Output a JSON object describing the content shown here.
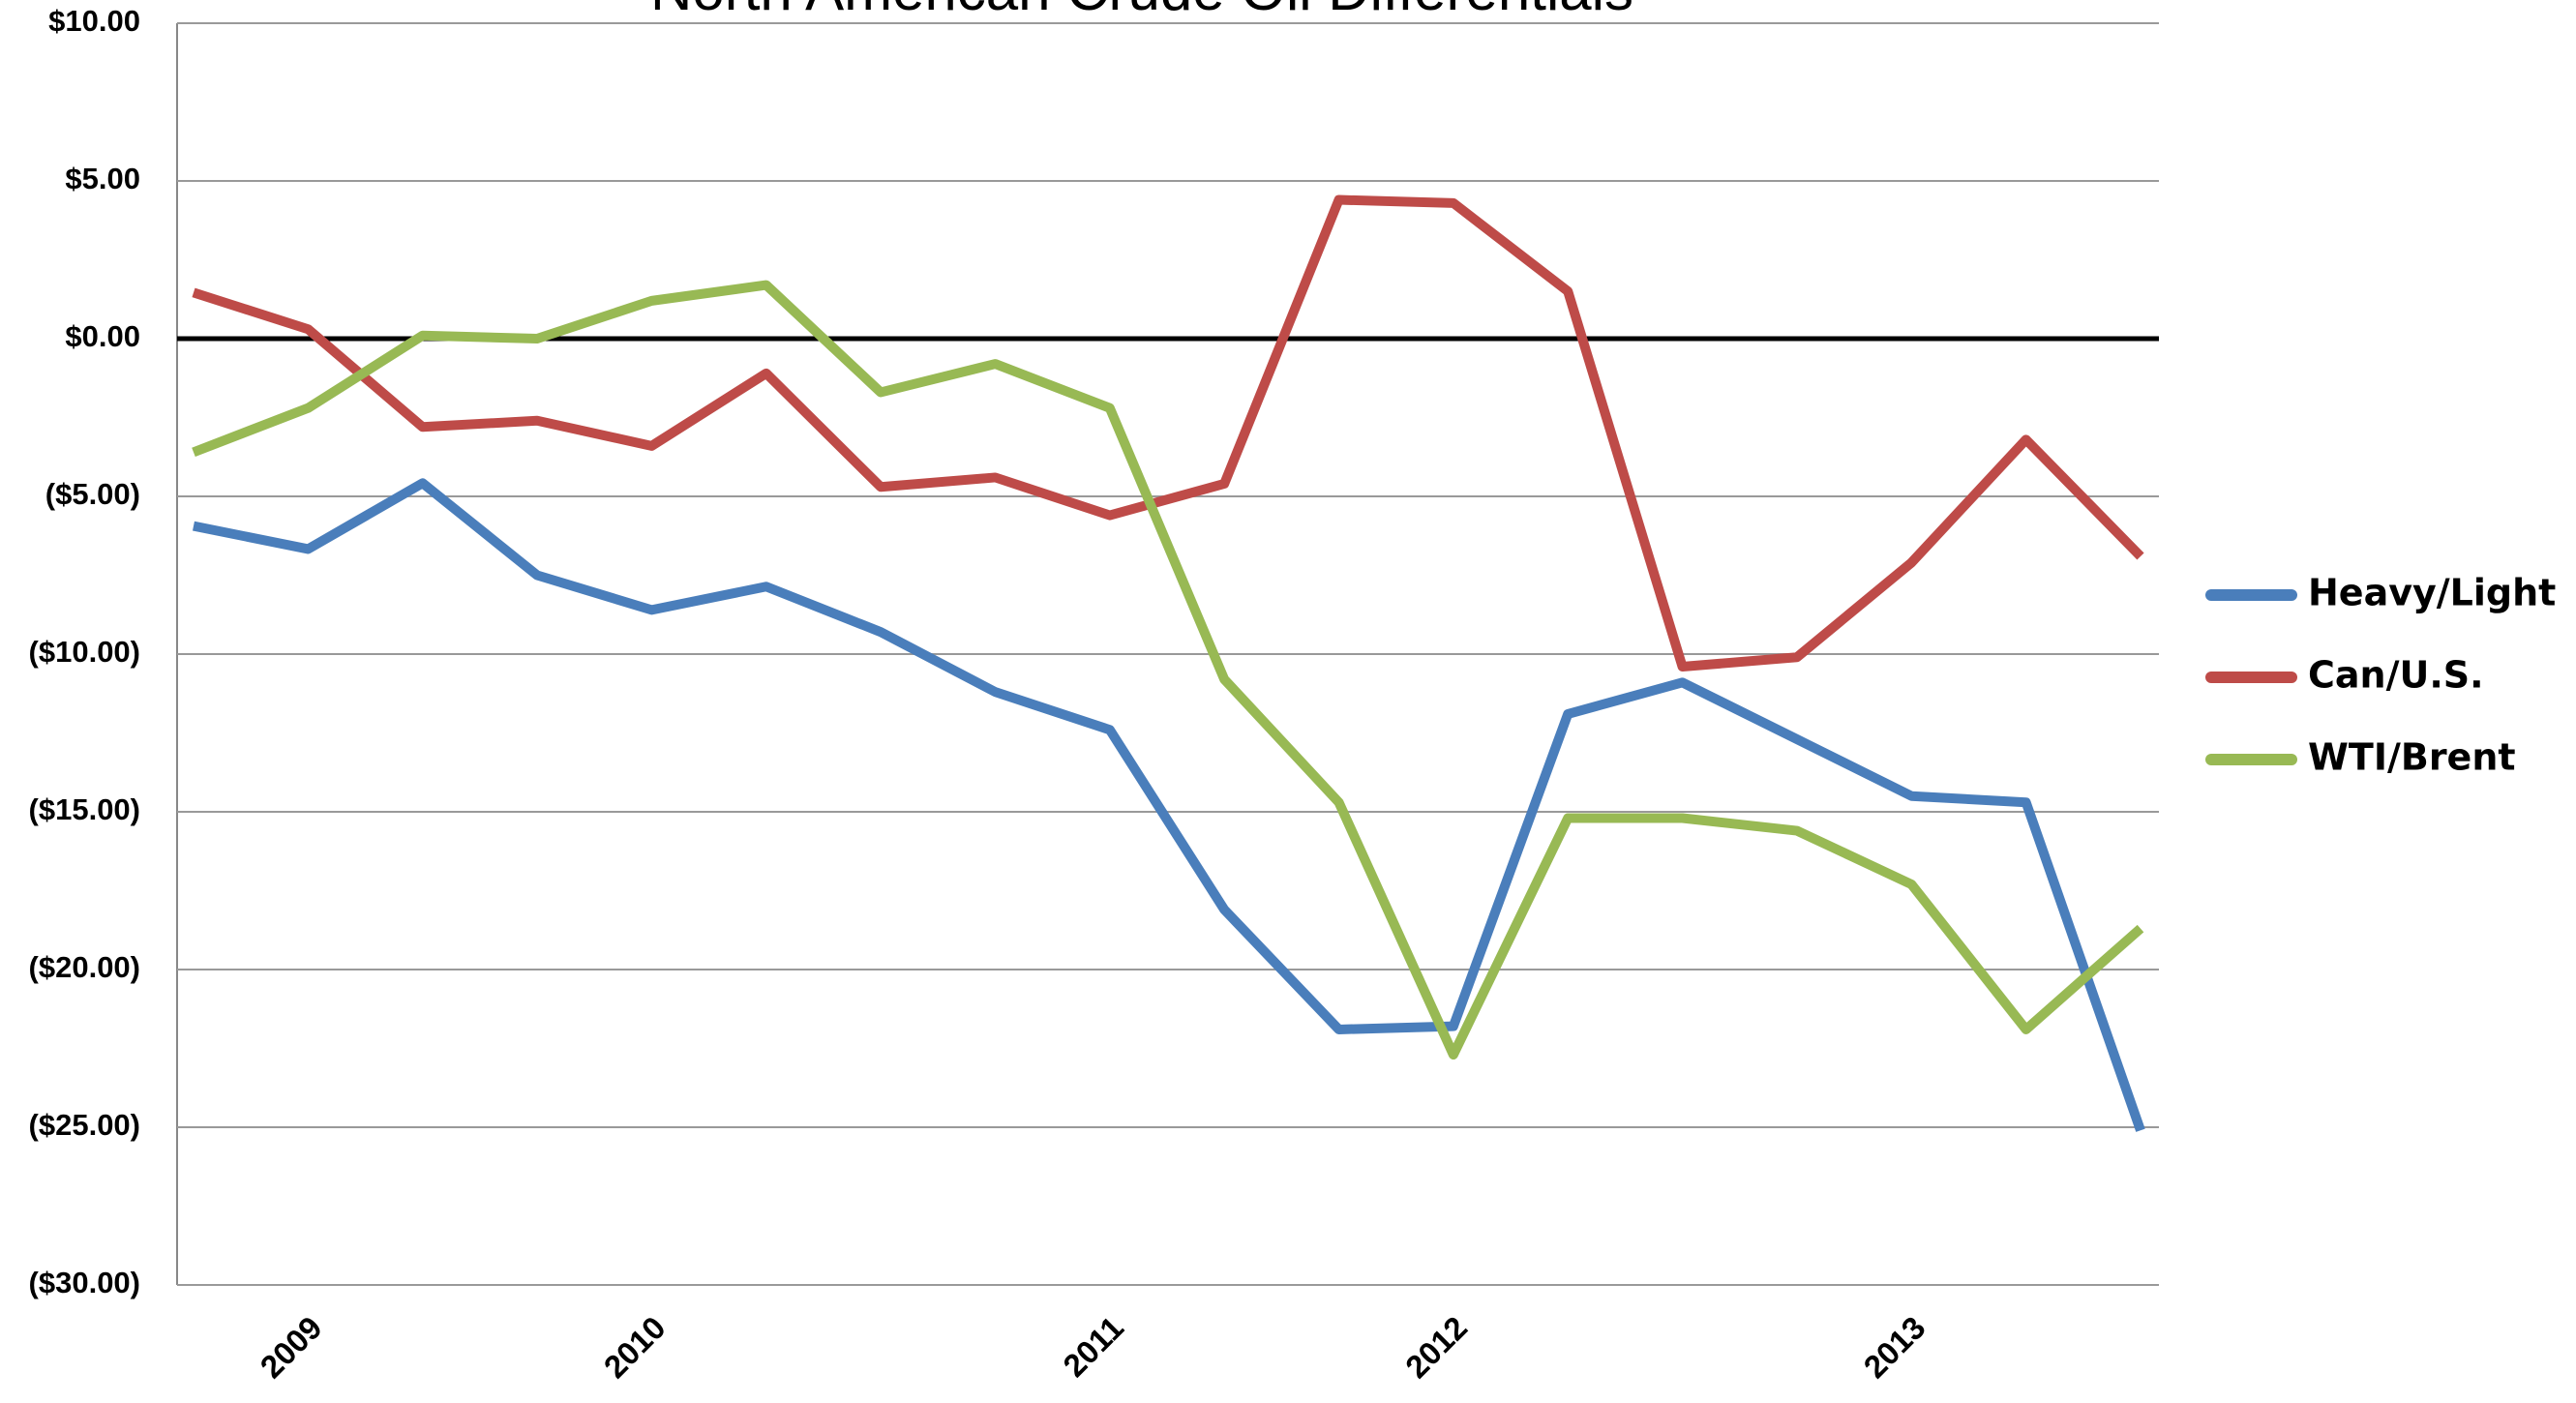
{
  "chart_data": {
    "type": "line",
    "title": "North American Crude Oil Differentials",
    "categories": [
      null,
      "2009",
      null,
      null,
      "2010",
      null,
      null,
      null,
      "2011",
      null,
      null,
      "2012",
      null,
      null,
      null,
      "2013",
      null,
      null
    ],
    "series": [
      {
        "name": "Heavy/Light",
        "color": "#4a7ebb",
        "values": [
          -5.94,
          -6.67,
          -4.58,
          -7.5,
          -8.6,
          -7.86,
          -9.3,
          -11.2,
          -12.4,
          -18.1,
          -21.9,
          -21.8,
          -11.9,
          -10.9,
          -12.7,
          -14.5,
          -14.7,
          -25.1
        ]
      },
      {
        "name": "Can/U.S.",
        "color": "#be4b48",
        "values": [
          1.46,
          0.3,
          -2.8,
          -2.6,
          -3.4,
          -1.1,
          -4.7,
          -4.4,
          -5.6,
          -4.6,
          4.4,
          4.3,
          1.5,
          -10.4,
          -10.1,
          -7.1,
          -3.2,
          -6.9
        ]
      },
      {
        "name": "WTI/Brent",
        "color": "#98b954",
        "values": [
          -3.6,
          -2.2,
          0.1,
          0,
          1.2,
          1.7,
          -1.7,
          -0.8,
          -2.2,
          -10.8,
          -14.7,
          -22.7,
          -15.2,
          -15.2,
          -15.6,
          -17.3,
          -21.9,
          -18.7
        ]
      }
    ],
    "ylim": [
      -30,
      10
    ],
    "yticks": [
      {
        "value": 10,
        "label": "$10.00"
      },
      {
        "value": 5,
        "label": "$5.00"
      },
      {
        "value": 0,
        "label": "$0.00"
      },
      {
        "value": -5,
        "label": "($5.00)"
      },
      {
        "value": -10,
        "label": "($10.00)"
      },
      {
        "value": -15,
        "label": "($15.00)"
      },
      {
        "value": -20,
        "label": "($20.00)"
      },
      {
        "value": -25,
        "label": "($25.00)"
      },
      {
        "value": -30,
        "label": "($30.00)"
      }
    ],
    "grid": true,
    "legend": "right"
  }
}
